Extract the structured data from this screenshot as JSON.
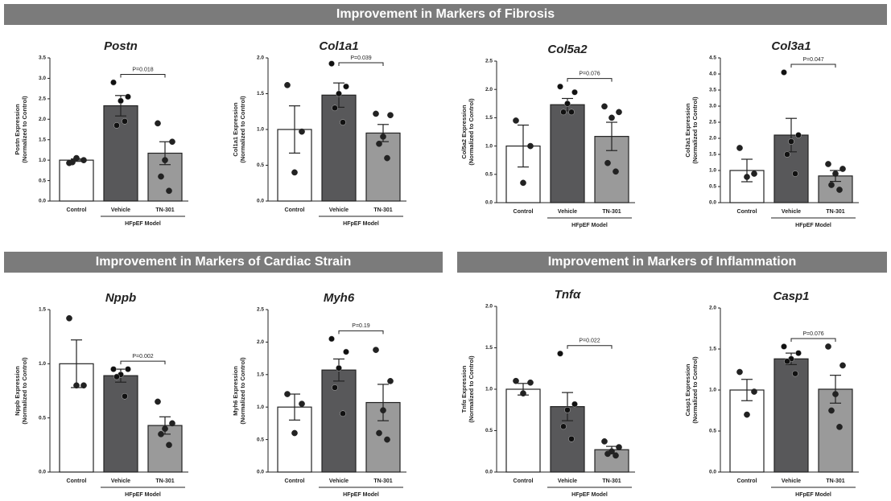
{
  "headers": [
    "Improvement in Markers of Fibrosis",
    "Improvement in Markers of Cardiac Strain",
    "Improvement in Markers of Inflammation"
  ],
  "chart_data": [
    {
      "type": "bar",
      "title": "Postn",
      "ylabel": [
        "Postn Expression",
        "(Normalized to Control)"
      ],
      "categories": [
        "Control",
        "Vehicle",
        "TN-301"
      ],
      "group_label": "HFpEF Model",
      "annotation": "P=0.018",
      "colors": [
        "#ffffff",
        "#58585a",
        "#9a9a9a"
      ],
      "values": [
        1.0,
        2.33,
        1.17
      ],
      "errors": [
        0.03,
        0.25,
        0.28
      ],
      "points": [
        [
          0.93,
          1.0,
          1.05,
          0.95
        ],
        [
          2.9,
          2.55,
          2.45,
          1.85,
          1.95
        ],
        [
          1.9,
          1.45,
          1.0,
          0.6,
          0.25
        ]
      ],
      "ylim": [
        0,
        3.5
      ],
      "yticks": [
        {
          "value": 0,
          "label": "0.0"
        },
        0.5,
        {
          "value": 1,
          "label": "1.0"
        },
        1.5,
        {
          "value": 2,
          "label": "2.0"
        },
        2.5,
        {
          "value": 3,
          "label": "3.0"
        },
        3.5
      ]
    },
    {
      "type": "bar",
      "title": "Col1a1",
      "ylabel": [
        "Col1a1 Expression",
        "(Normalized to Control)"
      ],
      "categories": [
        "Control",
        "Vehicle",
        "TN-301"
      ],
      "group_label": "HFpEF Model",
      "annotation": "P=0.039",
      "colors": [
        "#ffffff",
        "#58585a",
        "#9a9a9a"
      ],
      "values": [
        1.0,
        1.48,
        0.95
      ],
      "errors": [
        0.33,
        0.17,
        0.12
      ],
      "points": [
        [
          1.62,
          0.97,
          0.4
        ],
        [
          1.92,
          1.6,
          1.5,
          1.3,
          1.1
        ],
        [
          1.22,
          1.2,
          0.9,
          0.8,
          0.6
        ]
      ],
      "ylim": [
        0,
        2
      ],
      "yticks": [
        {
          "value": 0,
          "label": "0.0"
        },
        0.5,
        {
          "value": 1,
          "label": "1.0"
        },
        1.5,
        {
          "value": 2,
          "label": "2.0"
        }
      ]
    },
    {
      "type": "bar",
      "title": "Col5a2",
      "ylabel": [
        "Col5a2 Expression",
        "(Normalized to Control)"
      ],
      "categories": [
        "Control",
        "Vehicle",
        "TN-301"
      ],
      "group_label": "HFpEF Model",
      "annotation": "P=0.076",
      "colors": [
        "#ffffff",
        "#58585a",
        "#9a9a9a"
      ],
      "values": [
        1.0,
        1.73,
        1.17
      ],
      "errors": [
        0.37,
        0.11,
        0.25
      ],
      "points": [
        [
          1.45,
          1.0,
          0.35
        ],
        [
          2.05,
          1.95,
          1.75,
          1.6,
          1.6
        ],
        [
          1.7,
          1.6,
          1.5,
          0.7,
          0.55
        ]
      ],
      "ylim": [
        0,
        2.5
      ],
      "yticks": [
        {
          "value": 0,
          "label": "0.0"
        },
        0.5,
        {
          "value": 1,
          "label": "1.0"
        },
        1.5,
        {
          "value": 2,
          "label": "2.0"
        },
        2.5
      ]
    },
    {
      "type": "bar",
      "title": "Col3a1",
      "ylabel": [
        "Col3a1 Expression",
        "(Normalized to Control)"
      ],
      "categories": [
        "Control",
        "Vehicle",
        "TN-301"
      ],
      "group_label": "HFpEF Model",
      "annotation": "P=0.047",
      "colors": [
        "#ffffff",
        "#58585a",
        "#9a9a9a"
      ],
      "values": [
        1.0,
        2.1,
        0.83
      ],
      "errors": [
        0.35,
        0.52,
        0.17
      ],
      "points": [
        [
          1.7,
          0.9,
          0.8
        ],
        [
          4.05,
          2.1,
          1.9,
          1.5,
          0.9
        ],
        [
          1.2,
          1.05,
          0.9,
          0.55,
          0.4
        ]
      ],
      "ylim": [
        0,
        4.5
      ],
      "yticks": [
        {
          "value": 0,
          "label": "0.0"
        },
        0.5,
        {
          "value": 1,
          "label": "1.0"
        },
        1.5,
        {
          "value": 2,
          "label": "2.0"
        },
        2.5,
        {
          "value": 3,
          "label": "3.0"
        },
        3.5,
        {
          "value": 4,
          "label": "4.0"
        },
        4.5
      ]
    },
    {
      "type": "bar",
      "title": "Nppb",
      "ylabel": [
        "Nppb Expression",
        "(Normalized to Control)"
      ],
      "categories": [
        "Control",
        "Vehicle",
        "TN-301"
      ],
      "group_label": "HFpEF Model",
      "annotation": "P=0.002",
      "colors": [
        "#ffffff",
        "#58585a",
        "#9a9a9a"
      ],
      "values": [
        1.0,
        0.89,
        0.43
      ],
      "errors": [
        0.22,
        0.06,
        0.08
      ],
      "points": [
        [
          1.42,
          0.8,
          0.8
        ],
        [
          0.95,
          0.95,
          0.9,
          0.88,
          0.7
        ],
        [
          0.65,
          0.45,
          0.4,
          0.35,
          0.25
        ]
      ],
      "ylim": [
        0,
        1.5
      ],
      "yticks": [
        {
          "value": 0,
          "label": "0.0"
        },
        0.5,
        {
          "value": 1,
          "label": "1.0"
        },
        1.5
      ]
    },
    {
      "type": "bar",
      "title": "Myh6",
      "ylabel": [
        "Myh6 Expression",
        "(Normalized to Control)"
      ],
      "categories": [
        "Control",
        "Vehicle",
        "TN-301"
      ],
      "group_label": "HFpEF Model",
      "annotation": "P=0.19",
      "colors": [
        "#ffffff",
        "#58585a",
        "#9a9a9a"
      ],
      "values": [
        1.0,
        1.57,
        1.07
      ],
      "errors": [
        0.2,
        0.17,
        0.28
      ],
      "points": [
        [
          1.2,
          1.05,
          0.6
        ],
        [
          2.05,
          1.85,
          1.6,
          1.3,
          0.9
        ],
        [
          1.88,
          1.4,
          0.95,
          0.6,
          0.5
        ]
      ],
      "ylim": [
        0,
        2.5
      ],
      "yticks": [
        {
          "value": 0,
          "label": "0.0"
        },
        0.5,
        {
          "value": 1,
          "label": "1.0"
        },
        1.5,
        {
          "value": 2,
          "label": "2.0"
        },
        2.5
      ]
    },
    {
      "type": "bar",
      "title": "Tnfα",
      "ylabel": [
        "Tnfα Expression",
        "(Normalized to Control)"
      ],
      "categories": [
        "Control",
        "Vehicle",
        "TN-301"
      ],
      "group_label": "HFpEF Model",
      "annotation": "P=0.022",
      "colors": [
        "#ffffff",
        "#58585a",
        "#9a9a9a"
      ],
      "values": [
        1.0,
        0.79,
        0.27
      ],
      "errors": [
        0.07,
        0.17,
        0.04
      ],
      "points": [
        [
          1.1,
          1.08,
          0.95
        ],
        [
          1.43,
          0.82,
          0.75,
          0.55,
          0.4
        ],
        [
          0.37,
          0.3,
          0.25,
          0.22,
          0.2
        ]
      ],
      "ylim": [
        0,
        2
      ],
      "yticks": [
        {
          "value": 0,
          "label": "0.0"
        },
        0.5,
        {
          "value": 1,
          "label": "1.0"
        },
        1.5,
        {
          "value": 2,
          "label": "2.0"
        }
      ]
    },
    {
      "type": "bar",
      "title": "Casp1",
      "ylabel": [
        "Casp1 Expression",
        "(Normalized to Control)"
      ],
      "categories": [
        "Control",
        "Vehicle",
        "TN-301"
      ],
      "group_label": "HFpEF Model",
      "annotation": "P=0.076",
      "colors": [
        "#ffffff",
        "#58585a",
        "#9a9a9a"
      ],
      "values": [
        1.0,
        1.38,
        1.01
      ],
      "errors": [
        0.13,
        0.07,
        0.17
      ],
      "points": [
        [
          1.22,
          0.98,
          0.7
        ],
        [
          1.53,
          1.45,
          1.38,
          1.35,
          1.2
        ],
        [
          1.53,
          1.3,
          0.95,
          0.75,
          0.55
        ]
      ],
      "ylim": [
        0,
        2
      ],
      "yticks": [
        {
          "value": 0,
          "label": "0.0"
        },
        0.5,
        {
          "value": 1,
          "label": "1.0"
        },
        1.5,
        {
          "value": 2,
          "label": "2.0"
        }
      ]
    }
  ]
}
